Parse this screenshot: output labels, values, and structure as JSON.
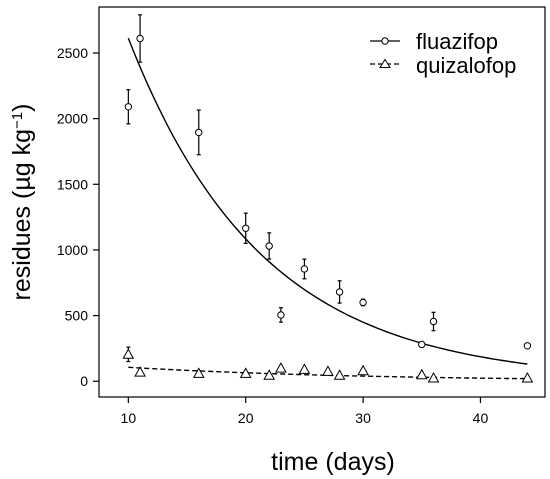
{
  "chart_data": {
    "type": "scatter",
    "xlabel": "time (days)",
    "ylabel": "residues (µg kg",
    "ylabel_superscript": "−1",
    "ylabel_close": ")",
    "xlim": [
      7.5,
      45.5
    ],
    "ylim": [
      -120,
      2850
    ],
    "xticks": [
      10,
      20,
      30,
      40
    ],
    "yticks": [
      0,
      500,
      1000,
      1500,
      2000,
      2500
    ],
    "grid": false,
    "legend_position": "top-right",
    "series": [
      {
        "name": "fluazifop",
        "marker": "circle",
        "line_style": "solid",
        "points": [
          {
            "x": 10,
            "y": 2090,
            "err": 130
          },
          {
            "x": 11,
            "y": 2610,
            "err": 180
          },
          {
            "x": 16,
            "y": 1895,
            "err": 170
          },
          {
            "x": 20,
            "y": 1165,
            "err": 115
          },
          {
            "x": 22,
            "y": 1030,
            "err": 100
          },
          {
            "x": 23,
            "y": 505,
            "err": 55
          },
          {
            "x": 25,
            "y": 855,
            "err": 75
          },
          {
            "x": 28,
            "y": 680,
            "err": 85
          },
          {
            "x": 30,
            "y": 600,
            "err": 25
          },
          {
            "x": 35,
            "y": 280,
            "err": 0
          },
          {
            "x": 36,
            "y": 455,
            "err": 70
          },
          {
            "x": 44,
            "y": 270,
            "err": 0
          }
        ],
        "fit": {
          "model": "exponential",
          "x_start": 10,
          "x_end": 44,
          "a": 6300,
          "k": 0.088
        }
      },
      {
        "name": "quizalofop",
        "marker": "triangle",
        "line_style": "dashed",
        "points": [
          {
            "x": 10,
            "y": 205,
            "err": 55
          },
          {
            "x": 11,
            "y": 70,
            "err": 0
          },
          {
            "x": 16,
            "y": 60,
            "err": 0
          },
          {
            "x": 20,
            "y": 60,
            "err": 0
          },
          {
            "x": 22,
            "y": 45,
            "err": 0
          },
          {
            "x": 23,
            "y": 100,
            "err": 0
          },
          {
            "x": 25,
            "y": 90,
            "err": 0
          },
          {
            "x": 27,
            "y": 75,
            "err": 0
          },
          {
            "x": 28,
            "y": 45,
            "err": 0
          },
          {
            "x": 30,
            "y": 80,
            "err": 0
          },
          {
            "x": 35,
            "y": 50,
            "err": 0
          },
          {
            "x": 36,
            "y": 25,
            "err": 0
          },
          {
            "x": 44,
            "y": 25,
            "err": 0
          }
        ],
        "fit": {
          "model": "exponential",
          "x_start": 10,
          "x_end": 44,
          "a": 175,
          "k": 0.05
        }
      }
    ]
  }
}
